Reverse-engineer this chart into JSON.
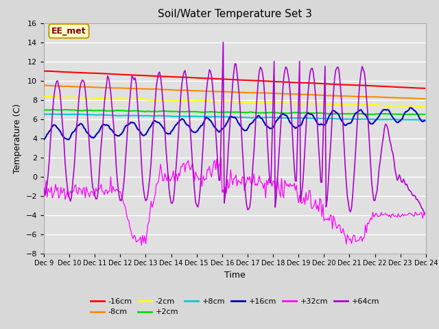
{
  "title": "Soil/Water Temperature Set 3",
  "xlabel": "Time",
  "ylabel": "Temperature (C)",
  "ylim": [
    -8,
    16
  ],
  "xlim": [
    0,
    360
  ],
  "yticks": [
    -8,
    -6,
    -4,
    -2,
    0,
    2,
    4,
    6,
    8,
    10,
    12,
    14,
    16
  ],
  "xtick_labels": [
    "Dec 9",
    "Dec 10",
    "Dec 11",
    "Dec 12",
    "Dec 13",
    "Dec 14",
    "Dec 15",
    "Dec 16",
    "Dec 17",
    "Dec 18",
    "Dec 19",
    "Dec 20",
    "Dec 21",
    "Dec 22",
    "Dec 23",
    "Dec 24"
  ],
  "annotation_text": "EE_met",
  "annotation_box_color": "#ffffcc",
  "annotation_box_edge": "#cc9900",
  "series_colors": {
    "-16cm": "#ff0000",
    "-8cm": "#ff8800",
    "-2cm": "#ffff00",
    "+2cm": "#00dd00",
    "+8cm": "#00cccc",
    "+16cm": "#0000bb",
    "+32cm": "#ff00ff",
    "+64cm": "#aa00cc"
  },
  "bg_color": "#d8d8d8",
  "plot_bg_color": "#e0e0e0"
}
